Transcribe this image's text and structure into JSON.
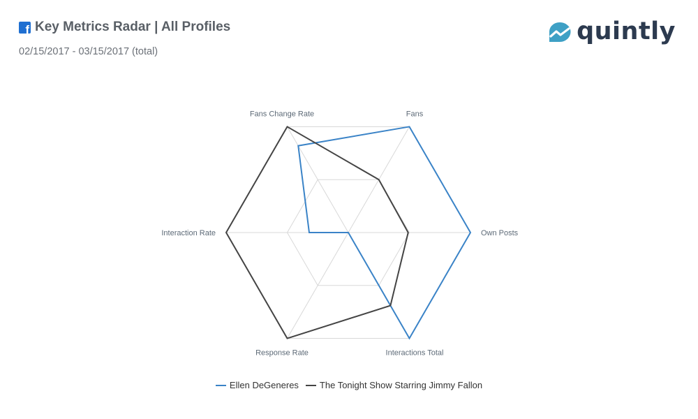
{
  "header": {
    "title": "Key Metrics Radar | All Profiles",
    "date_range": "02/15/2017 - 03/15/2017 (total)",
    "platform_icon": "facebook-icon"
  },
  "brand": {
    "name": "quintly",
    "logo_icon": "quintly-logo-icon",
    "color": "#2c3a4f",
    "accent": "#3ea0c5"
  },
  "chart_data": {
    "type": "radar",
    "title": "Key Metrics Radar | All Profiles",
    "subtitle": "02/15/2017 - 03/15/2017 (total)",
    "axes": [
      "Fans",
      "Own Posts",
      "Interactions Total",
      "Response Rate",
      "Interaction Rate",
      "Fans Change Rate"
    ],
    "range": [
      0,
      1
    ],
    "grid_levels": 2,
    "grid": true,
    "legend_position": "bottom",
    "series": [
      {
        "name": "Ellen DeGeneres",
        "color": "#3a83c7",
        "values": [
          1.0,
          1.0,
          1.0,
          0.0,
          0.32,
          0.82
        ]
      },
      {
        "name": "The Tonight Show Starring Jimmy Fallon",
        "color": "#444444",
        "values": [
          0.5,
          0.49,
          0.69,
          1.0,
          1.0,
          1.0
        ]
      }
    ]
  }
}
